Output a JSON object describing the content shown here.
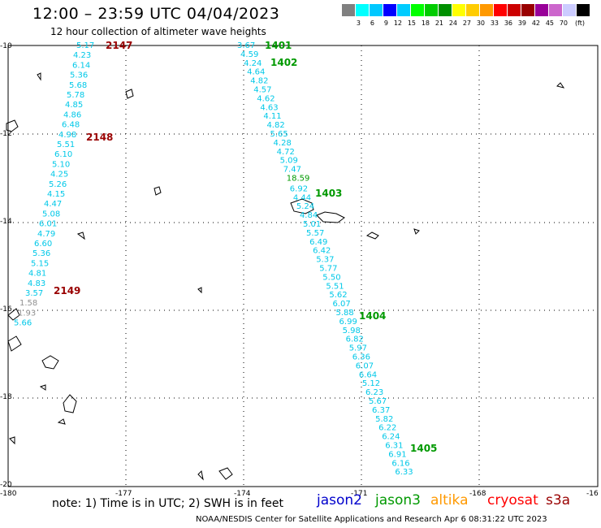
{
  "title": "12:00 – 23:59 UTC 04/04/2023",
  "subtitle": "12 hour collection of altimeter wave heights",
  "legend": {
    "colors": [
      "#808080",
      "#00ffff",
      "#00c8ff",
      "#0000ff",
      "#00ccff",
      "#00ff00",
      "#00cc00",
      "#009000",
      "#ffff00",
      "#ffcc00",
      "#ff9900",
      "#ff0000",
      "#cc0000",
      "#990000",
      "#990099",
      "#cc66cc",
      "#ccccff",
      "#000000"
    ],
    "labels": [
      "3",
      "6",
      "9",
      "12",
      "15",
      "18",
      "21",
      "24",
      "27",
      "30",
      "33",
      "36",
      "39",
      "42",
      "45",
      "70",
      "(ft)"
    ]
  },
  "axes": {
    "lat_labels": [
      "-10",
      "-12",
      "-14",
      "-16",
      "-18",
      "-20"
    ],
    "lon_labels": [
      "-180",
      "-177",
      "-174",
      "-171",
      "-168",
      "-16"
    ]
  },
  "note": "note:  1) Time is in UTC; 2) SWH is in feet",
  "satellites": [
    {
      "name": "jason2",
      "color": "#0000cc"
    },
    {
      "name": "jason3",
      "color": "#009900"
    },
    {
      "name": "altika",
      "color": "#ff9900"
    },
    {
      "name": "cryosat",
      "color": "#ff0000"
    },
    {
      "name": "s3a",
      "color": "#990000"
    }
  ],
  "credit": "NOAA/NESDIS Center for Satellite Applications and Research   Apr  6 08:31:22 UTC 2023",
  "track_a": {
    "values": [
      "5.17",
      "4.23",
      "6.14",
      "5.36",
      "5.68",
      "5.78",
      "4.85",
      "4.86",
      "6.48",
      "4.98",
      "5.51",
      "6.10",
      "5.10",
      "4.25",
      "5.26",
      "4.15",
      "4.47",
      "5.08",
      "6.01",
      "4.79",
      "6.60",
      "5.36",
      "5.15",
      "4.81",
      "4.83",
      "3.57",
      "1.58",
      "1.93",
      "5.66"
    ],
    "colors": [
      "c",
      "c",
      "c",
      "c",
      "c",
      "c",
      "c",
      "c",
      "c",
      "c",
      "c",
      "c",
      "c",
      "c",
      "c",
      "c",
      "c",
      "c",
      "c",
      "c",
      "c",
      "c",
      "c",
      "c",
      "c",
      "c",
      "g",
      "g",
      "c"
    ]
  },
  "track_b": {
    "values": [
      "3.67",
      "4.59",
      "4.24",
      "4.64",
      "4.82",
      "4.57",
      "4.62",
      "4.63",
      "4.11",
      "4.82",
      "5.65",
      "4.28",
      "4.72",
      "5.09",
      "7.47",
      "18.59",
      "6.92",
      "4.44",
      "5.24",
      "4.84",
      "5.01",
      "5.57",
      "6.49",
      "6.42",
      "5.37",
      "5.77",
      "5.50",
      "5.51",
      "5.62",
      "6.07",
      "5.88",
      "6.99",
      "5.98",
      "6.82",
      "5.97",
      "6.36",
      "6.07",
      "6.64",
      "5.12",
      "6.23",
      "5.67",
      "6.37",
      "5.82",
      "6.22",
      "6.24",
      "6.31",
      "6.91",
      "6.16",
      "6.33"
    ],
    "colors": [
      "c",
      "c",
      "c",
      "c",
      "c",
      "c",
      "c",
      "c",
      "c",
      "c",
      "c",
      "c",
      "c",
      "c",
      "c",
      "y",
      "c",
      "c",
      "c",
      "c",
      "c",
      "c",
      "c",
      "c",
      "c",
      "c",
      "c",
      "c",
      "c",
      "c",
      "c",
      "c",
      "c",
      "c",
      "c",
      "c",
      "c",
      "c",
      "c",
      "c",
      "c",
      "c",
      "c",
      "c",
      "c",
      "c",
      "c",
      "c",
      "c"
    ]
  },
  "passes": [
    {
      "label": "2147",
      "color": "#990000"
    },
    {
      "label": "2148",
      "color": "#990000"
    },
    {
      "label": "2149",
      "color": "#990000"
    },
    {
      "label": "1401",
      "color": "#009900"
    },
    {
      "label": "1402",
      "color": "#009900"
    },
    {
      "label": "1403",
      "color": "#009900"
    },
    {
      "label": "1404",
      "color": "#009900"
    },
    {
      "label": "1405",
      "color": "#009900"
    }
  ]
}
